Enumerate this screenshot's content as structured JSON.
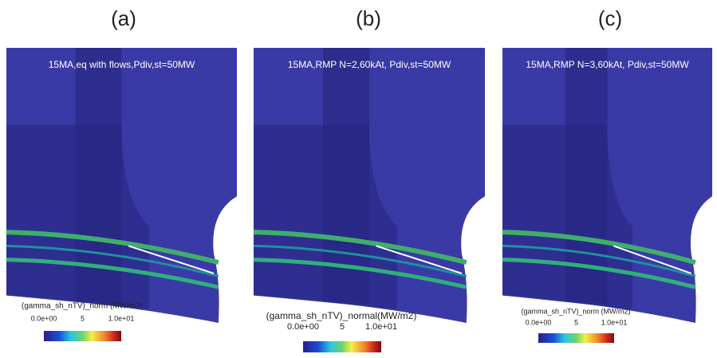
{
  "panels": [
    {
      "label": "(a)",
      "title": "15MA,eq with flows,Pdiv,st=50MW",
      "colorbar": {
        "title": "(gamma_sh_nTV)_norm (MW/m2)",
        "ticks": [
          "0.0e+00",
          "5",
          "1.0e+01"
        ]
      }
    },
    {
      "label": "(b)",
      "title": "15MA,RMP N=2,60kAt, Pdiv,st=50MW",
      "colorbar": {
        "title": "(gamma_sh_nTV)_normal(MW/m2)",
        "ticks": [
          "0.0e+00",
          "5",
          "1.0e+01"
        ]
      }
    },
    {
      "label": "(c)",
      "title": "15MA,RMP N=3,60kAt, Pdiv,st=50MW",
      "colorbar": {
        "title": "(gamma_sh_nTV)_norm (MW/m2)",
        "ticks": [
          "0.0e+00",
          "5",
          "1.0e+01"
        ]
      }
    }
  ]
}
